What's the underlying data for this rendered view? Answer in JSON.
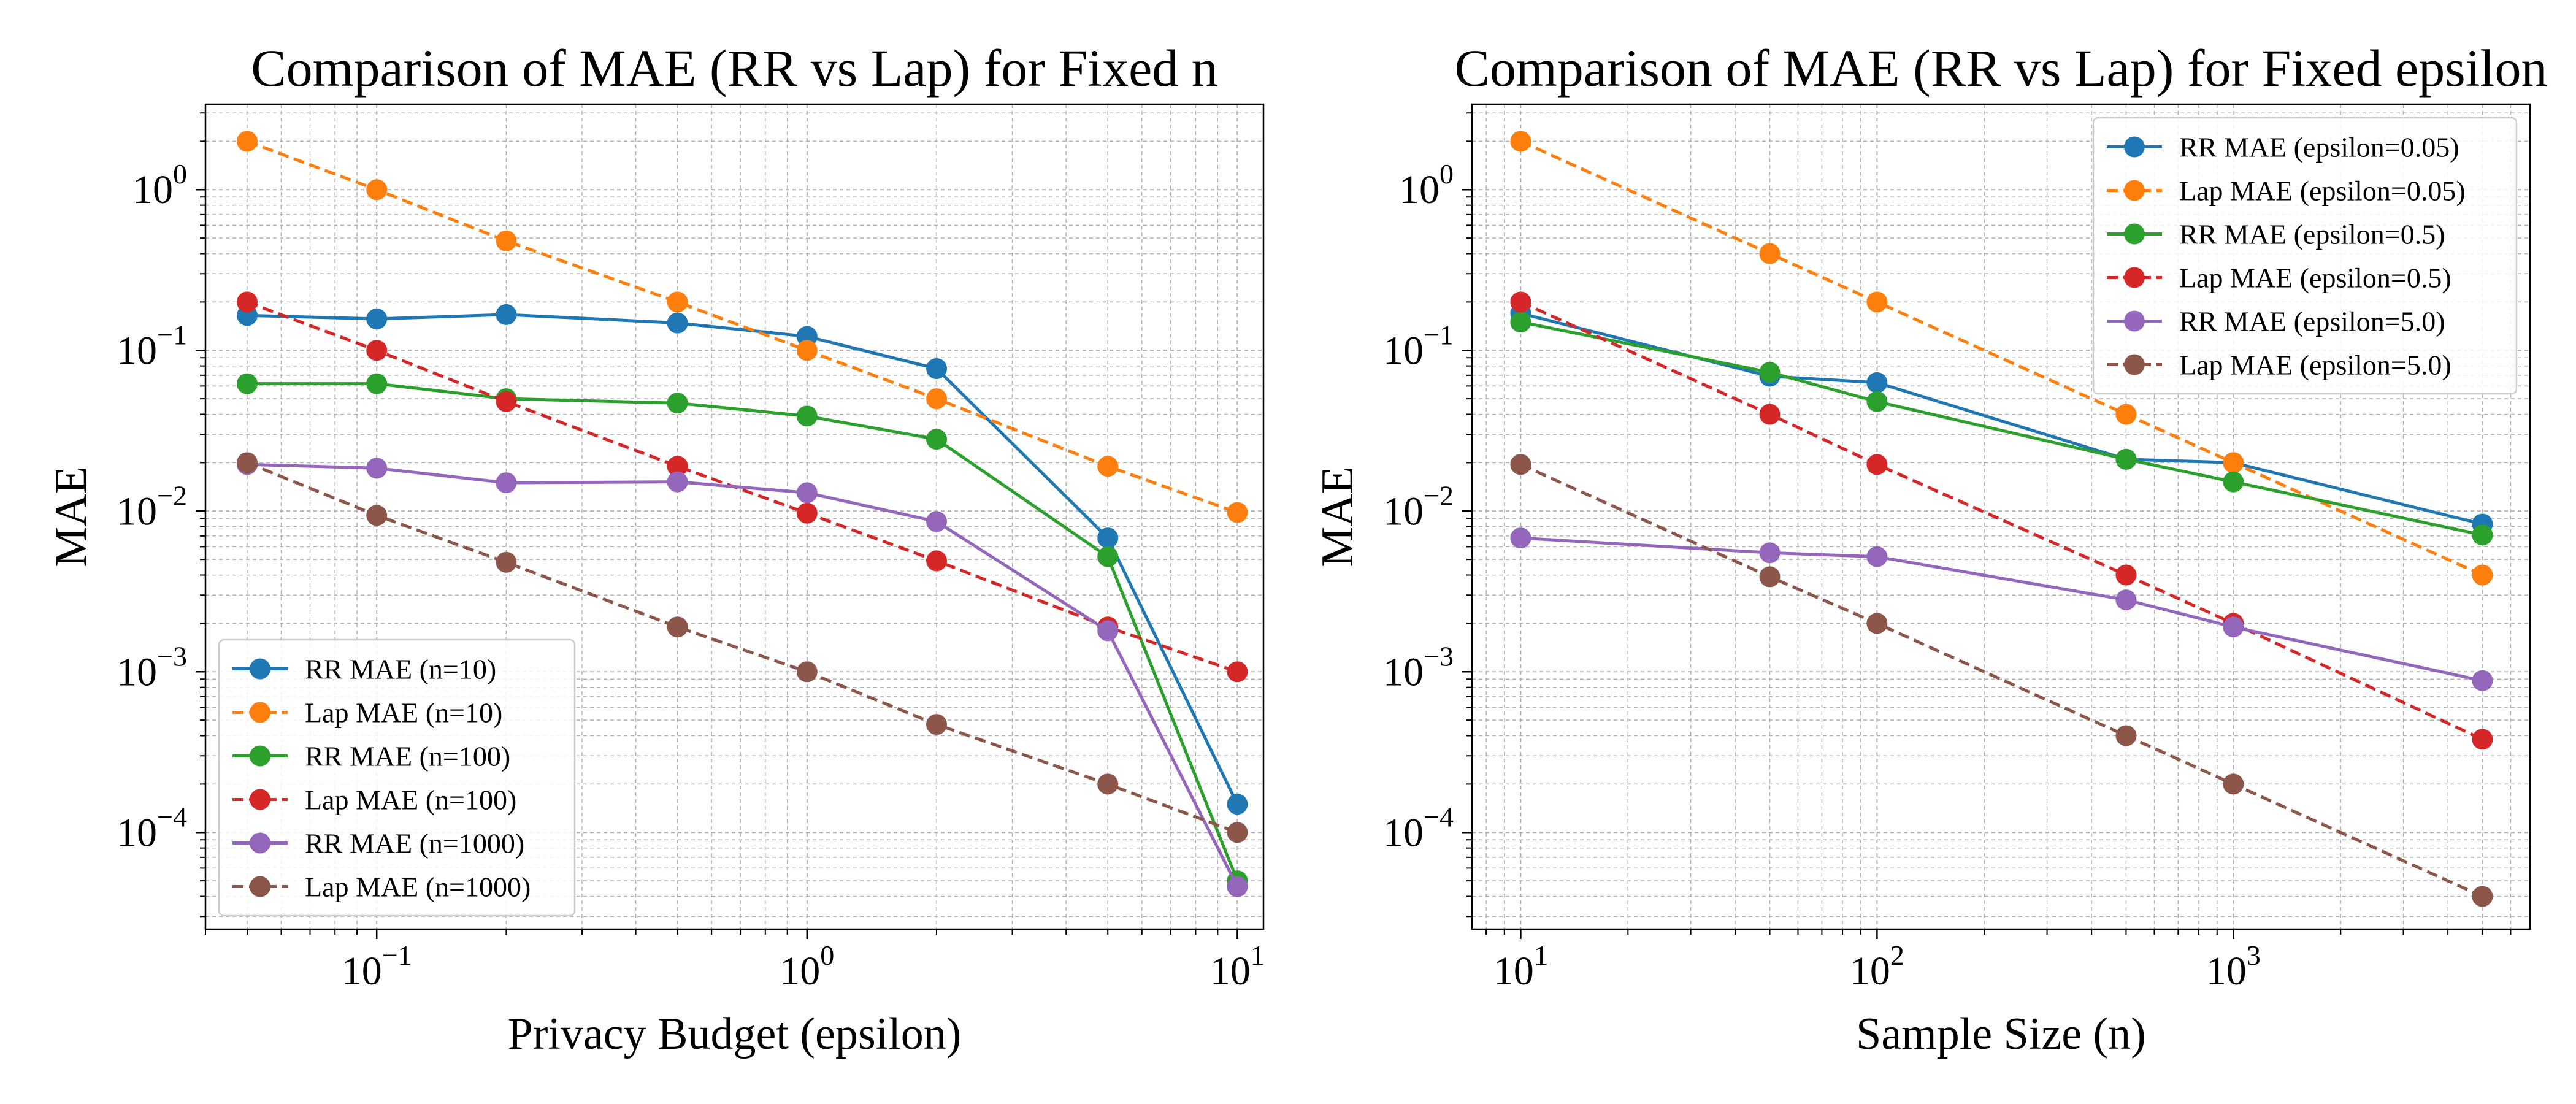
{
  "chart_data": [
    {
      "type": "line",
      "title": "Comparison of MAE (RR vs Lap) for Fixed n",
      "xlabel": "Privacy Budget (epsilon)",
      "ylabel": "MAE",
      "xscale": "log",
      "yscale": "log",
      "xlim": [
        0.04,
        11.5
      ],
      "ylim": [
        2.5e-05,
        3.4
      ],
      "xticks": [
        {
          "value": 0.1,
          "base": "10",
          "exp": "−1"
        },
        {
          "value": 1,
          "base": "10",
          "exp": "0"
        },
        {
          "value": 10,
          "base": "10",
          "exp": "1"
        }
      ],
      "yticks": [
        {
          "value": 0.0001,
          "base": "10",
          "exp": "−4"
        },
        {
          "value": 0.001,
          "base": "10",
          "exp": "−3"
        },
        {
          "value": 0.01,
          "base": "10",
          "exp": "−2"
        },
        {
          "value": 0.1,
          "base": "10",
          "exp": "−1"
        },
        {
          "value": 1,
          "base": "10",
          "exp": "0"
        }
      ],
      "grid": true,
      "legend_position": "lower-left",
      "series": [
        {
          "name": "RR MAE (n=10)",
          "color": "#1f77b4",
          "dashed": false,
          "x": [
            0.05,
            0.1,
            0.2,
            0.5,
            1,
            2,
            5,
            10
          ],
          "y": [
            0.165,
            0.157,
            0.167,
            0.148,
            0.122,
            0.077,
            0.0068,
            0.00015
          ]
        },
        {
          "name": "Lap MAE (n=10)",
          "color": "#ff7f0e",
          "dashed": true,
          "x": [
            0.05,
            0.1,
            0.2,
            0.5,
            1,
            2,
            5,
            10
          ],
          "y": [
            2.0,
            1.0,
            0.48,
            0.2,
            0.1,
            0.05,
            0.019,
            0.0098
          ]
        },
        {
          "name": "RR MAE (n=100)",
          "color": "#2ca02c",
          "dashed": false,
          "x": [
            0.05,
            0.1,
            0.2,
            0.5,
            1,
            2,
            5,
            10
          ],
          "y": [
            0.062,
            0.062,
            0.05,
            0.047,
            0.039,
            0.028,
            0.0052,
            5e-05
          ]
        },
        {
          "name": "Lap MAE (n=100)",
          "color": "#d62728",
          "dashed": true,
          "x": [
            0.05,
            0.1,
            0.2,
            0.5,
            1,
            2,
            5,
            10
          ],
          "y": [
            0.2,
            0.1,
            0.048,
            0.019,
            0.0097,
            0.0049,
            0.0019,
            0.001
          ]
        },
        {
          "name": "RR MAE (n=1000)",
          "color": "#9467bd",
          "dashed": false,
          "x": [
            0.05,
            0.1,
            0.2,
            0.5,
            1,
            2,
            5,
            10
          ],
          "y": [
            0.0195,
            0.0185,
            0.015,
            0.0152,
            0.013,
            0.0086,
            0.0018,
            4.6e-05
          ]
        },
        {
          "name": "Lap MAE (n=1000)",
          "color": "#8c564b",
          "dashed": true,
          "x": [
            0.05,
            0.1,
            0.2,
            0.5,
            1,
            2,
            5,
            10
          ],
          "y": [
            0.02,
            0.0094,
            0.0048,
            0.0019,
            0.001,
            0.00047,
            0.0002,
            0.0001
          ]
        }
      ]
    },
    {
      "type": "line",
      "title": "Comparison of MAE (RR vs Lap) for Fixed epsilon",
      "xlabel": "Sample Size (n)",
      "ylabel": "MAE",
      "xscale": "log",
      "yscale": "log",
      "xlim": [
        7.3,
        6800
      ],
      "ylim": [
        2.5e-05,
        3.4
      ],
      "xticks": [
        {
          "value": 10,
          "base": "10",
          "exp": "1"
        },
        {
          "value": 100,
          "base": "10",
          "exp": "2"
        },
        {
          "value": 1000,
          "base": "10",
          "exp": "3"
        }
      ],
      "yticks": [
        {
          "value": 0.0001,
          "base": "10",
          "exp": "−4"
        },
        {
          "value": 0.001,
          "base": "10",
          "exp": "−3"
        },
        {
          "value": 0.01,
          "base": "10",
          "exp": "−2"
        },
        {
          "value": 0.1,
          "base": "10",
          "exp": "−1"
        },
        {
          "value": 1,
          "base": "10",
          "exp": "0"
        }
      ],
      "grid": true,
      "legend_position": "upper-right",
      "series": [
        {
          "name": "RR MAE (epsilon=0.05)",
          "color": "#1f77b4",
          "dashed": false,
          "x": [
            10,
            50,
            100,
            500,
            1000,
            5000
          ],
          "y": [
            0.17,
            0.069,
            0.063,
            0.021,
            0.02,
            0.0083
          ]
        },
        {
          "name": "Lap MAE (epsilon=0.05)",
          "color": "#ff7f0e",
          "dashed": true,
          "x": [
            10,
            50,
            100,
            500,
            1000,
            5000
          ],
          "y": [
            2.0,
            0.4,
            0.2,
            0.04,
            0.02,
            0.004
          ]
        },
        {
          "name": "RR MAE (epsilon=0.5)",
          "color": "#2ca02c",
          "dashed": false,
          "x": [
            10,
            50,
            100,
            500,
            1000,
            5000
          ],
          "y": [
            0.15,
            0.073,
            0.048,
            0.021,
            0.0152,
            0.0071
          ]
        },
        {
          "name": "Lap MAE (epsilon=0.5)",
          "color": "#d62728",
          "dashed": true,
          "x": [
            10,
            50,
            100,
            500,
            1000,
            5000
          ],
          "y": [
            0.2,
            0.04,
            0.0195,
            0.004,
            0.002,
            0.00038
          ]
        },
        {
          "name": "RR MAE (epsilon=5.0)",
          "color": "#9467bd",
          "dashed": false,
          "x": [
            10,
            50,
            100,
            500,
            1000,
            5000
          ],
          "y": [
            0.0068,
            0.0055,
            0.0052,
            0.0028,
            0.0019,
            0.00088
          ]
        },
        {
          "name": "Lap MAE (epsilon=5.0)",
          "color": "#8c564b",
          "dashed": true,
          "x": [
            10,
            50,
            100,
            500,
            1000,
            5000
          ],
          "y": [
            0.0195,
            0.0039,
            0.002,
            0.0004,
            0.0002,
            4e-05
          ]
        }
      ]
    }
  ]
}
